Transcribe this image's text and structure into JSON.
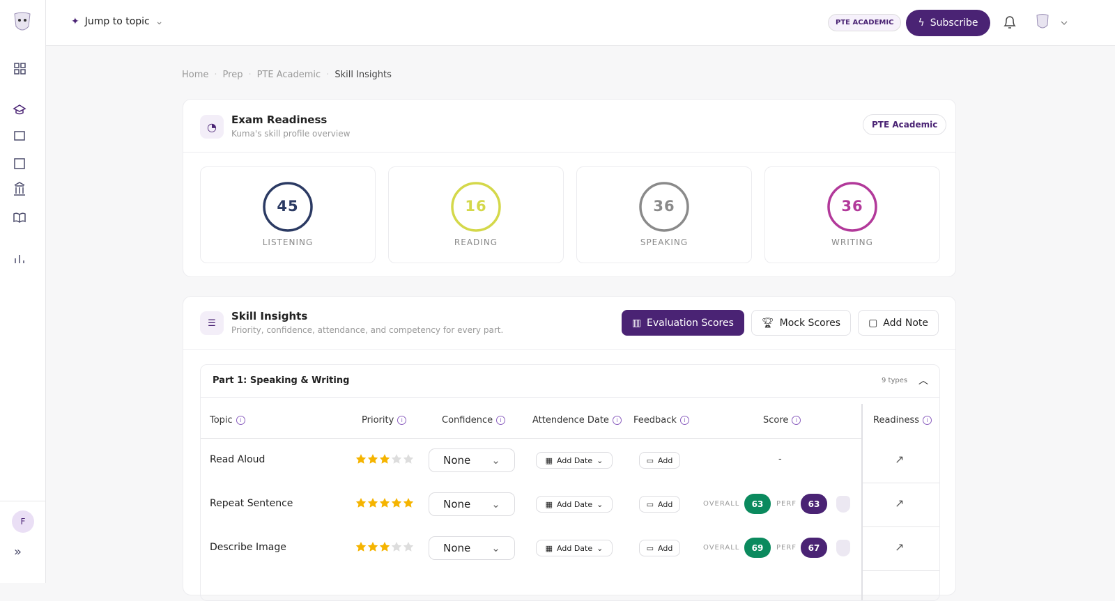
{
  "topbar": {
    "jump": "Jump to topic",
    "exam_badge": "PTE ACADEMIC",
    "subscribe": "Subscribe"
  },
  "sidebar": {
    "avatar": "F"
  },
  "breadcrumb": [
    "Home",
    "Prep",
    "PTE Academic",
    "Skill Insights"
  ],
  "readiness": {
    "title": "Exam Readiness",
    "subtitle": "Kuma's skill profile overview",
    "badge": "PTE Academic",
    "skills": [
      {
        "name": "LISTENING",
        "score": 45,
        "color": "#2b3a63"
      },
      {
        "name": "READING",
        "score": 16,
        "color": "#d4d84a"
      },
      {
        "name": "SPEAKING",
        "score": 36,
        "color": "#8a8a8a"
      },
      {
        "name": "WRITING",
        "score": 36,
        "color": "#b2399a"
      }
    ]
  },
  "insights": {
    "title": "Skill Insights",
    "subtitle": "Priority, confidence, attendance, and competency for every part.",
    "buttons": [
      "Evaluation Scores",
      "Mock Scores",
      "Add Note"
    ],
    "part": {
      "title": "Part 1: Speaking & Writing",
      "count": "9 types",
      "columns": [
        "Topic",
        "Priority",
        "Confidence",
        "Attendence Date",
        "Feedback",
        "Score",
        "Readiness"
      ],
      "priority_max": 5,
      "rows": [
        {
          "topic": "Read Aloud",
          "priority": 3,
          "confidence": "None",
          "date": "Add Date",
          "feedback": "Add",
          "score": "-"
        },
        {
          "topic": "Repeat Sentence",
          "priority": 5,
          "confidence": "None",
          "date": "Add Date",
          "feedback": "Add",
          "overall_label": "OVERALL",
          "overall": 63,
          "perf_label": "PERF",
          "perf": 63
        },
        {
          "topic": "Describe Image",
          "priority": 3,
          "confidence": "None",
          "date": "Add Date",
          "feedback": "Add",
          "overall_label": "OVERALL",
          "overall": 69,
          "perf_label": "PERF",
          "perf": 67
        }
      ]
    }
  }
}
